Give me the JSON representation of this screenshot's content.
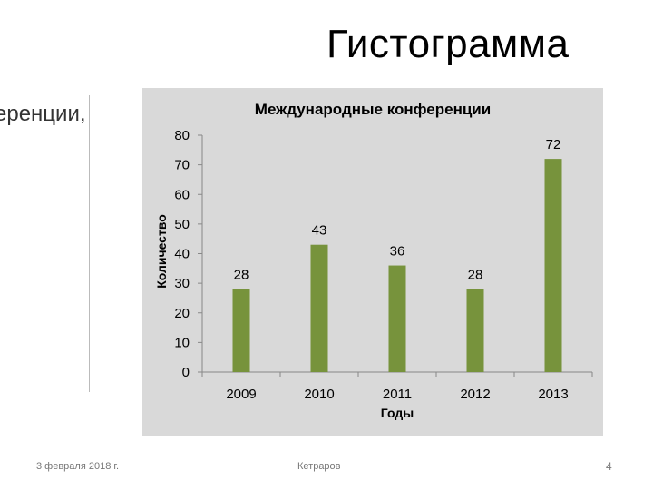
{
  "slide": {
    "title": "Гистограмма",
    "partial_text": "еренции,",
    "footer_date": "3 февраля 2018 г.",
    "footer_author": "Кетраров",
    "page_number": "4"
  },
  "chart_data": {
    "type": "bar",
    "title": "Международные конференции",
    "xlabel": "Годы",
    "ylabel": "Количество",
    "categories": [
      "2009",
      "2010",
      "2011",
      "2012",
      "2013"
    ],
    "values": [
      28,
      43,
      36,
      28,
      72
    ],
    "data_labels": [
      "28",
      "43",
      "36",
      "28",
      "72"
    ],
    "ylim": [
      0,
      80
    ],
    "yticks": [
      0,
      10,
      20,
      30,
      40,
      50,
      60,
      70,
      80
    ],
    "bar_color": "#77933c",
    "background_color": "#d9d9d9",
    "grid": false,
    "legend": "none"
  }
}
